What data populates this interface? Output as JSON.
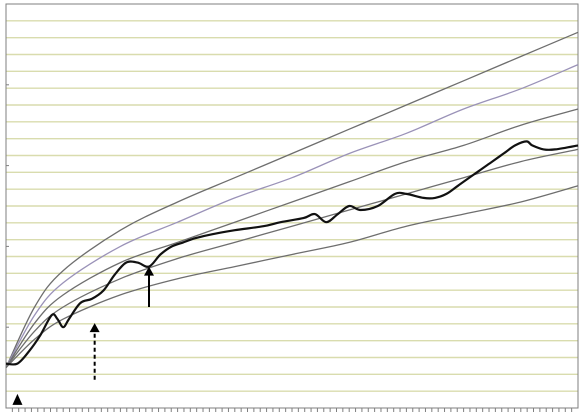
{
  "chart_data": {
    "type": "line",
    "title": "",
    "xlabel": "",
    "ylabel": "",
    "xlim": [
      0,
      100
    ],
    "ylim": [
      0,
      100
    ],
    "grid": true,
    "colors": {
      "grid": "#d9dcae",
      "frame": "#7f7f7f",
      "reference": "#6e6e6e",
      "reference_light": "#9a92b8",
      "subject": "#111111",
      "marker": "#000000"
    },
    "reference_curves": [
      {
        "values": [
          [
            0,
            10
          ],
          [
            5,
            25
          ],
          [
            10,
            34
          ],
          [
            20,
            44
          ],
          [
            30,
            51
          ],
          [
            40,
            57
          ],
          [
            50,
            63
          ],
          [
            60,
            69
          ],
          [
            70,
            75
          ],
          [
            80,
            81
          ],
          [
            90,
            87
          ],
          [
            100,
            93
          ]
        ]
      },
      {
        "values": [
          [
            0,
            10
          ],
          [
            5,
            23
          ],
          [
            10,
            31
          ],
          [
            20,
            40
          ],
          [
            30,
            46
          ],
          [
            40,
            52
          ],
          [
            50,
            57
          ],
          [
            60,
            63
          ],
          [
            70,
            68
          ],
          [
            80,
            74
          ],
          [
            90,
            79
          ],
          [
            100,
            85
          ]
        ]
      },
      {
        "values": [
          [
            0,
            10
          ],
          [
            5,
            21
          ],
          [
            10,
            28
          ],
          [
            20,
            36
          ],
          [
            30,
            41
          ],
          [
            40,
            46
          ],
          [
            50,
            51
          ],
          [
            60,
            56
          ],
          [
            70,
            61
          ],
          [
            80,
            65
          ],
          [
            90,
            70
          ],
          [
            100,
            74
          ]
        ]
      },
      {
        "values": [
          [
            0,
            10
          ],
          [
            5,
            19
          ],
          [
            10,
            25
          ],
          [
            20,
            32
          ],
          [
            30,
            37
          ],
          [
            40,
            41
          ],
          [
            50,
            45
          ],
          [
            60,
            49
          ],
          [
            70,
            53
          ],
          [
            80,
            57
          ],
          [
            90,
            61
          ],
          [
            100,
            64
          ]
        ]
      },
      {
        "values": [
          [
            0,
            10
          ],
          [
            5,
            17
          ],
          [
            10,
            22
          ],
          [
            20,
            28
          ],
          [
            30,
            32
          ],
          [
            40,
            35
          ],
          [
            50,
            38
          ],
          [
            60,
            41
          ],
          [
            70,
            45
          ],
          [
            80,
            48
          ],
          [
            90,
            51
          ],
          [
            100,
            55
          ]
        ]
      }
    ],
    "series": [
      {
        "values": [
          [
            0,
            11
          ],
          [
            2,
            11
          ],
          [
            4,
            14
          ],
          [
            6,
            18
          ],
          [
            8,
            23
          ],
          [
            9,
            22
          ],
          [
            10,
            20
          ],
          [
            11,
            22
          ],
          [
            13,
            26
          ],
          [
            15,
            27
          ],
          [
            17,
            29
          ],
          [
            19,
            33
          ],
          [
            21,
            36
          ],
          [
            23,
            36
          ],
          [
            25,
            35
          ],
          [
            27,
            38
          ],
          [
            29,
            40
          ],
          [
            31,
            41
          ],
          [
            33,
            42
          ],
          [
            36,
            43
          ],
          [
            40,
            44
          ],
          [
            45,
            45
          ],
          [
            48,
            46
          ],
          [
            52,
            47
          ],
          [
            54,
            48
          ],
          [
            56,
            46
          ],
          [
            58,
            48
          ],
          [
            60,
            50
          ],
          [
            62,
            49
          ],
          [
            65,
            50
          ],
          [
            68,
            53
          ],
          [
            70,
            53
          ],
          [
            73,
            52
          ],
          [
            75,
            52
          ],
          [
            77,
            53
          ],
          [
            79,
            55
          ],
          [
            82,
            58
          ],
          [
            85,
            61
          ],
          [
            87,
            63
          ],
          [
            89,
            65
          ],
          [
            91,
            66
          ],
          [
            92,
            65
          ],
          [
            94,
            64
          ],
          [
            96,
            64
          ],
          [
            100,
            65
          ]
        ]
      }
    ],
    "markers": [
      {
        "type": "triangle",
        "x": 2,
        "y": 2
      },
      {
        "type": "dashed-arrow",
        "x": 15.5,
        "y_from": 7,
        "y_to": 21
      },
      {
        "type": "arrow",
        "x": 25,
        "y_from": 25,
        "y_to": 35
      }
    ]
  }
}
